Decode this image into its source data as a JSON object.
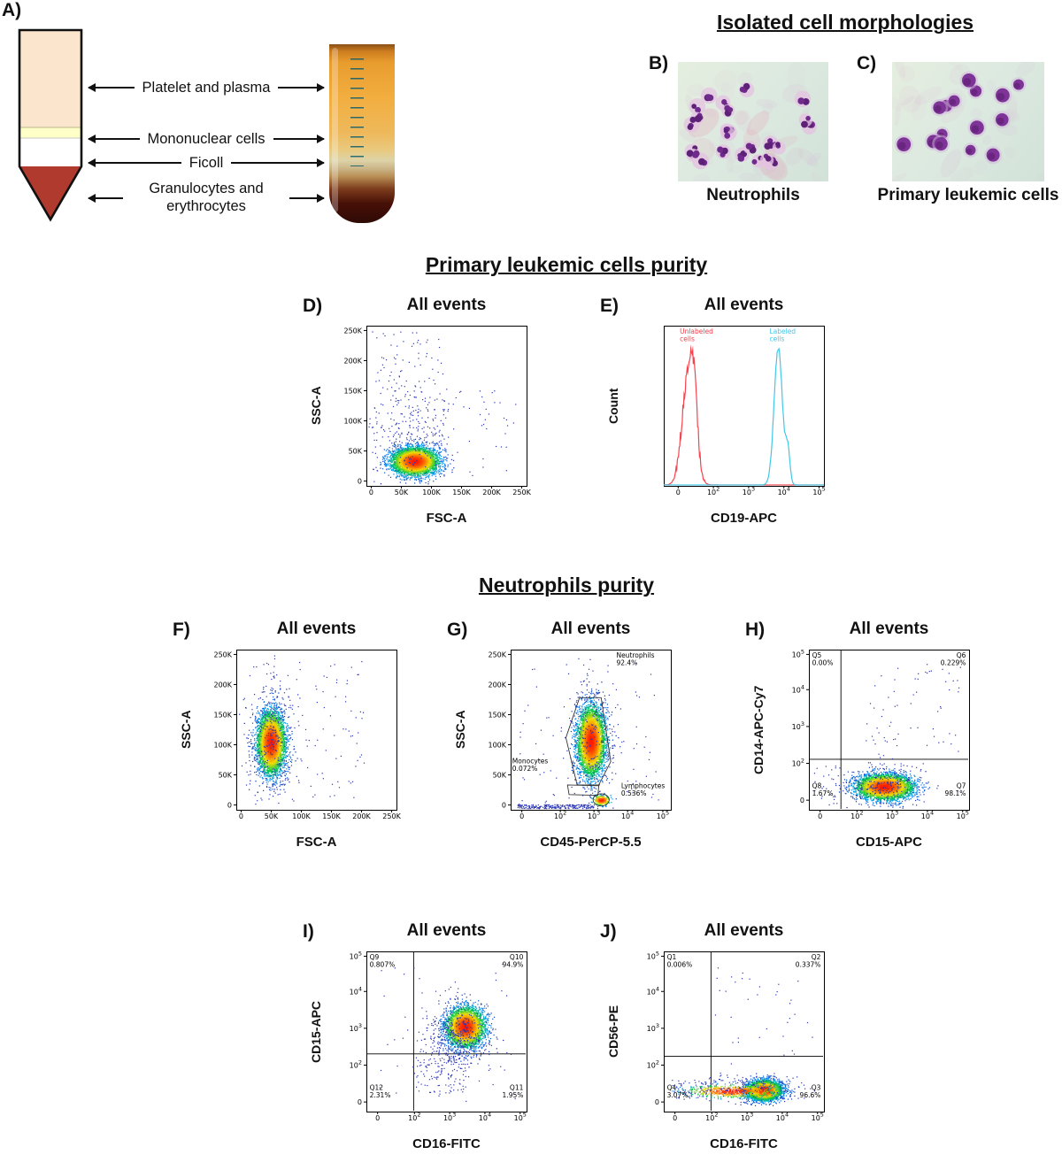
{
  "panel_a": {
    "label": "A)",
    "layers": [
      {
        "name": "Platelet and plasma",
        "color": "#fbe5cc"
      },
      {
        "name": "Mononuclear cells",
        "color": "#ffffc8"
      },
      {
        "name": "Ficoll",
        "color": "#ffffff"
      },
      {
        "name": "Granulocytes and erythrocytes",
        "color": "#b03a2e"
      }
    ]
  },
  "morphologies": {
    "title": "Isolated cell morphologies",
    "panels": [
      {
        "label": "B)",
        "caption": "Neutrophils",
        "style": "neutrophils",
        "cells": 24,
        "seed": 42
      },
      {
        "label": "C)",
        "caption": "Primary leukemic cells",
        "style": "leukemic",
        "cells": 15,
        "seed": 77
      }
    ]
  },
  "sections": {
    "primary_purity": "Primary leukemic cells purity",
    "neutrophil_purity": "Neutrophils purity"
  },
  "chart_data": [
    {
      "panel_label": "D)",
      "title": "All events",
      "type": "scatter",
      "xlabel": "FSC-A",
      "ylabel": "SSC-A",
      "x_scale": "linear",
      "y_scale": "linear",
      "x_ticks": [
        {
          "label": "0",
          "f": 0.03
        },
        {
          "label": "50K",
          "f": 0.218
        },
        {
          "label": "100K",
          "f": 0.406
        },
        {
          "label": "150K",
          "f": 0.594
        },
        {
          "label": "200K",
          "f": 0.782
        },
        {
          "label": "250K",
          "f": 0.97
        }
      ],
      "y_ticks": [
        {
          "label": "0",
          "f": 0.03
        },
        {
          "label": "50K",
          "f": 0.218
        },
        {
          "label": "100K",
          "f": 0.406
        },
        {
          "label": "150K",
          "f": 0.594
        },
        {
          "label": "200K",
          "f": 0.782
        },
        {
          "label": "250K",
          "f": 0.97
        }
      ],
      "clusters": [
        {
          "fx": 0.3,
          "fy": 0.155,
          "sx": 0.07,
          "sy": 0.042,
          "n": 4800,
          "colormap": true,
          "seed": 11
        },
        {
          "fx": 0.27,
          "fy": 0.34,
          "sx": 0.11,
          "sy": 0.16,
          "n": 200,
          "seed": 12
        },
        {
          "kind": "uniform",
          "x0": 0.03,
          "x1": 0.5,
          "y0": 0.08,
          "y1": 0.97,
          "n": 150,
          "seed": 13
        },
        {
          "kind": "uniform",
          "x0": 0.45,
          "x1": 0.95,
          "y0": 0.05,
          "y1": 0.6,
          "n": 45,
          "seed": 14
        }
      ]
    },
    {
      "panel_label": "E)",
      "title": "All events",
      "type": "histogram",
      "xlabel": "CD19-APC",
      "ylabel": "Count",
      "x_scale": "biexponential",
      "x_ticks": [
        {
          "label": "0",
          "f": 0.09
        },
        {
          "label": "10^2",
          "f": 0.31
        },
        {
          "label": "10^3",
          "f": 0.53
        },
        {
          "label": "10^4",
          "f": 0.75
        },
        {
          "label": "10^5",
          "f": 0.97
        }
      ],
      "series": [
        {
          "name": "Unlabeled cells",
          "color": "#f4434f",
          "seed": 7,
          "jitter": 0.1,
          "peaks": [
            {
              "c": 0.155,
              "s": 0.038,
              "h": 0.8
            },
            {
              "c": 0.19,
              "s": 0.02,
              "h": 0.3
            }
          ]
        },
        {
          "name": "Labeled cells",
          "color": "#42c7e8",
          "seed": 3,
          "jitter": 0.03,
          "peaks": [
            {
              "c": 0.715,
              "s": 0.026,
              "h": 0.95
            },
            {
              "c": 0.775,
              "s": 0.013,
              "h": 0.24
            }
          ]
        }
      ],
      "labels": [
        {
          "text": "Unlabeled\ncells",
          "color": "#f43b49",
          "fx": 0.1,
          "fy": 0.99,
          "align": "left"
        },
        {
          "text": "Labeled\ncells",
          "color": "#42c7e8",
          "fx": 0.66,
          "fy": 0.99,
          "align": "left"
        }
      ]
    },
    {
      "panel_label": "F)",
      "title": "All events",
      "type": "scatter",
      "xlabel": "FSC-A",
      "ylabel": "SSC-A",
      "x_scale": "linear",
      "y_scale": "linear",
      "x_ticks": [
        {
          "label": "0",
          "f": 0.03
        },
        {
          "label": "50K",
          "f": 0.218
        },
        {
          "label": "100K",
          "f": 0.406
        },
        {
          "label": "150K",
          "f": 0.594
        },
        {
          "label": "200K",
          "f": 0.782
        },
        {
          "label": "250K",
          "f": 0.97
        }
      ],
      "y_ticks": [
        {
          "label": "0",
          "f": 0.03
        },
        {
          "label": "50K",
          "f": 0.218
        },
        {
          "label": "100K",
          "f": 0.406
        },
        {
          "label": "150K",
          "f": 0.594
        },
        {
          "label": "200K",
          "f": 0.782
        },
        {
          "label": "250K",
          "f": 0.97
        }
      ],
      "clusters": [
        {
          "fx": 0.215,
          "fy": 0.42,
          "sx": 0.042,
          "sy": 0.095,
          "n": 5000,
          "colormap": true,
          "seed": 21
        },
        {
          "fx": 0.22,
          "fy": 0.44,
          "sx": 0.075,
          "sy": 0.2,
          "n": 300,
          "seed": 22
        },
        {
          "kind": "uniform",
          "x0": 0.03,
          "x1": 0.8,
          "y0": 0.03,
          "y1": 0.97,
          "n": 130,
          "seed": 23
        }
      ]
    },
    {
      "panel_label": "G)",
      "title": "All events",
      "type": "scatter",
      "xlabel": "CD45-PerCP-5.5",
      "ylabel": "SSC-A",
      "x_scale": "biexponential",
      "y_scale": "linear",
      "x_ticks": [
        {
          "label": "0",
          "f": 0.07
        },
        {
          "label": "10^2",
          "f": 0.31
        },
        {
          "label": "10^3",
          "f": 0.52
        },
        {
          "label": "10^4",
          "f": 0.73
        },
        {
          "label": "10^5",
          "f": 0.95
        }
      ],
      "y_ticks": [
        {
          "label": "0",
          "f": 0.03
        },
        {
          "label": "50K",
          "f": 0.218
        },
        {
          "label": "100K",
          "f": 0.406
        },
        {
          "label": "150K",
          "f": 0.594
        },
        {
          "label": "200K",
          "f": 0.782
        },
        {
          "label": "250K",
          "f": 0.97
        }
      ],
      "clusters": [
        {
          "fx": 0.5,
          "fy": 0.43,
          "sx": 0.042,
          "sy": 0.105,
          "n": 5000,
          "colormap": true,
          "seed": 31
        },
        {
          "fx": 0.5,
          "fy": 0.44,
          "sx": 0.07,
          "sy": 0.2,
          "n": 260,
          "seed": 32
        },
        {
          "fx": 0.565,
          "fy": 0.062,
          "sx": 0.028,
          "sy": 0.016,
          "n": 230,
          "colormap": true,
          "seed": 33
        },
        {
          "kind": "uniform",
          "x0": 0.04,
          "x1": 0.52,
          "y0": 0.01,
          "y1": 0.035,
          "n": 220,
          "seed": 34
        },
        {
          "kind": "uniform",
          "x0": 0.05,
          "x1": 0.92,
          "y0": 0.03,
          "y1": 0.95,
          "n": 90,
          "seed": 35
        }
      ],
      "gates": [
        {
          "points": [
            [
              0.415,
              0.155
            ],
            [
              0.345,
              0.45
            ],
            [
              0.43,
              0.7
            ],
            [
              0.565,
              0.7
            ],
            [
              0.625,
              0.3
            ],
            [
              0.55,
              0.155
            ]
          ]
        },
        {
          "points": [
            [
              0.365,
              0.095
            ],
            [
              0.355,
              0.155
            ],
            [
              0.55,
              0.15
            ],
            [
              0.545,
              0.09
            ]
          ]
        },
        {
          "ellipse": true,
          "fx": 0.565,
          "fy": 0.062,
          "rx": 0.05,
          "ry": 0.038
        }
      ],
      "labels": [
        {
          "text": "Neutrophils\n92.4%",
          "fx": 0.66,
          "fy": 0.99,
          "align": "left"
        },
        {
          "text": "Monocytes\n0.072%",
          "fx": 0.01,
          "fy": 0.33,
          "align": "left"
        },
        {
          "text": "Lymphocytes\n0.536%",
          "fx": 0.69,
          "fy": 0.175,
          "align": "left"
        }
      ]
    },
    {
      "panel_label": "H)",
      "title": "All events",
      "type": "scatter",
      "xlabel": "CD15-APC",
      "ylabel": "CD14-APC-Cy7",
      "x_scale": "biexponential",
      "y_scale": "biexponential",
      "x_ticks": [
        {
          "label": "0",
          "f": 0.07
        },
        {
          "label": "10^2",
          "f": 0.3
        },
        {
          "label": "10^3",
          "f": 0.52
        },
        {
          "label": "10^4",
          "f": 0.74
        },
        {
          "label": "10^5",
          "f": 0.96
        }
      ],
      "y_ticks": [
        {
          "label": "0",
          "f": 0.06
        },
        {
          "label": "10^2",
          "f": 0.29
        },
        {
          "label": "10^3",
          "f": 0.52
        },
        {
          "label": "10^4",
          "f": 0.75
        },
        {
          "label": "10^5",
          "f": 0.97
        }
      ],
      "quad": {
        "x": 0.2,
        "y": 0.315
      },
      "clusters": [
        {
          "fx": 0.47,
          "fy": 0.145,
          "sx": 0.085,
          "sy": 0.038,
          "n": 4500,
          "colormap": true,
          "seed": 41
        },
        {
          "fx": 0.48,
          "fy": 0.16,
          "sx": 0.13,
          "sy": 0.065,
          "n": 260,
          "seed": 42
        },
        {
          "kind": "uniform",
          "x0": 0.35,
          "x1": 0.95,
          "y0": 0.32,
          "y1": 0.92,
          "n": 65,
          "seed": 43
        },
        {
          "kind": "uniform",
          "x0": 0.03,
          "x1": 0.33,
          "y0": 0.03,
          "y1": 0.28,
          "n": 40,
          "seed": 44
        }
      ],
      "labels": [
        {
          "text": "Q5\n0.00%",
          "fx": 0.02,
          "fy": 0.99,
          "align": "left"
        },
        {
          "text": "Q6\n0.229%",
          "fx": 0.98,
          "fy": 0.99,
          "align": "right"
        },
        {
          "text": "Q8\n1.67%",
          "fx": 0.02,
          "fy": 0.175,
          "align": "left"
        },
        {
          "text": "Q7\n98.1%",
          "fx": 0.98,
          "fy": 0.175,
          "align": "right"
        }
      ]
    },
    {
      "panel_label": "I)",
      "title": "All events",
      "type": "scatter",
      "xlabel": "CD16-FITC",
      "ylabel": "CD15-APC",
      "x_scale": "biexponential",
      "y_scale": "biexponential",
      "x_ticks": [
        {
          "label": "0",
          "f": 0.07
        },
        {
          "label": "10^2",
          "f": 0.3
        },
        {
          "label": "10^3",
          "f": 0.52
        },
        {
          "label": "10^4",
          "f": 0.74
        },
        {
          "label": "10^5",
          "f": 0.96
        }
      ],
      "y_ticks": [
        {
          "label": "0",
          "f": 0.06
        },
        {
          "label": "10^2",
          "f": 0.29
        },
        {
          "label": "10^3",
          "f": 0.52
        },
        {
          "label": "10^4",
          "f": 0.75
        },
        {
          "label": "10^5",
          "f": 0.97
        }
      ],
      "quad": {
        "x": 0.295,
        "y": 0.36
      },
      "clusters": [
        {
          "fx": 0.615,
          "fy": 0.53,
          "sx": 0.058,
          "sy": 0.06,
          "n": 4200,
          "colormap": true,
          "seed": 51
        },
        {
          "fx": 0.56,
          "fy": 0.47,
          "sx": 0.1,
          "sy": 0.11,
          "n": 450,
          "seed": 52
        },
        {
          "kind": "uniform",
          "x0": 0.3,
          "x1": 0.62,
          "y0": 0.12,
          "y1": 0.38,
          "n": 110,
          "seed": 53
        },
        {
          "kind": "uniform",
          "x0": 0.05,
          "x1": 0.93,
          "y0": 0.05,
          "y1": 0.93,
          "n": 55,
          "seed": 54
        }
      ],
      "labels": [
        {
          "text": "Q9\n0.807%",
          "fx": 0.02,
          "fy": 0.99,
          "align": "left"
        },
        {
          "text": "Q10\n94.9%",
          "fx": 0.98,
          "fy": 0.99,
          "align": "right"
        },
        {
          "text": "Q12\n2.31%",
          "fx": 0.02,
          "fy": 0.175,
          "align": "left"
        },
        {
          "text": "Q11\n1.95%",
          "fx": 0.98,
          "fy": 0.175,
          "align": "right"
        }
      ]
    },
    {
      "panel_label": "J)",
      "title": "All events",
      "type": "scatter",
      "xlabel": "CD16-FITC",
      "ylabel": "CD56-PE",
      "x_scale": "biexponential",
      "y_scale": "biexponential",
      "x_ticks": [
        {
          "label": "0",
          "f": 0.07
        },
        {
          "label": "10^2",
          "f": 0.3
        },
        {
          "label": "10^3",
          "f": 0.52
        },
        {
          "label": "10^4",
          "f": 0.74
        },
        {
          "label": "10^5",
          "f": 0.96
        }
      ],
      "y_ticks": [
        {
          "label": "0",
          "f": 0.06
        },
        {
          "label": "10^2",
          "f": 0.29
        },
        {
          "label": "10^3",
          "f": 0.52
        },
        {
          "label": "10^4",
          "f": 0.75
        },
        {
          "label": "10^5",
          "f": 0.97
        }
      ],
      "quad": {
        "x": 0.295,
        "y": 0.345
      },
      "clusters": [
        {
          "fx": 0.625,
          "fy": 0.135,
          "sx": 0.052,
          "sy": 0.03,
          "n": 4200,
          "colormap": true,
          "seed": 61
        },
        {
          "fx": 0.42,
          "fy": 0.13,
          "sx": 0.14,
          "sy": 0.02,
          "n": 650,
          "colormap": true,
          "seed": 62
        },
        {
          "fx": 0.55,
          "fy": 0.15,
          "sx": 0.16,
          "sy": 0.045,
          "n": 180,
          "seed": 63
        },
        {
          "kind": "uniform",
          "x0": 0.3,
          "x1": 0.93,
          "y0": 0.3,
          "y1": 0.9,
          "n": 35,
          "seed": 64
        },
        {
          "kind": "uniform",
          "x0": 0.05,
          "x1": 0.28,
          "y0": 0.08,
          "y1": 0.2,
          "n": 60,
          "seed": 65
        }
      ],
      "labels": [
        {
          "text": "Q1\n0.006%",
          "fx": 0.02,
          "fy": 0.99,
          "align": "left"
        },
        {
          "text": "Q2\n0.337%",
          "fx": 0.98,
          "fy": 0.99,
          "align": "right"
        },
        {
          "text": "Q4\n3.07%",
          "fx": 0.02,
          "fy": 0.175,
          "align": "left"
        },
        {
          "text": "Q3\n96.6%",
          "fx": 0.98,
          "fy": 0.175,
          "align": "right"
        }
      ]
    }
  ]
}
